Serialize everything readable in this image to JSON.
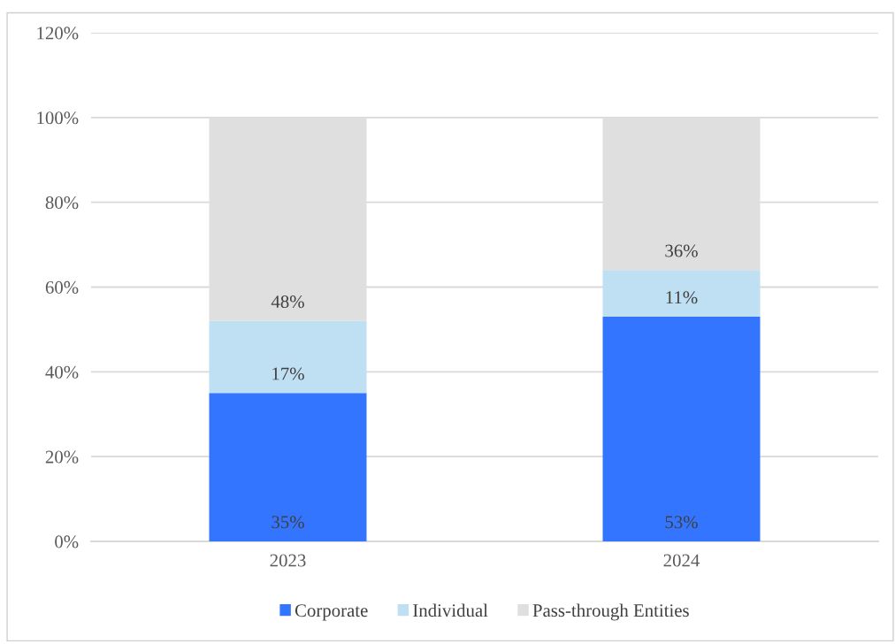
{
  "chart_data": {
    "type": "bar",
    "stacked": true,
    "categories": [
      "2023",
      "2024"
    ],
    "series": [
      {
        "name": "Corporate",
        "color": "#3375ff",
        "values": [
          35,
          53
        ],
        "value_labels": [
          "35%",
          "53%"
        ]
      },
      {
        "name": "Individual",
        "color": "#bfdff3",
        "values": [
          17,
          11
        ],
        "value_labels": [
          "17%",
          "11%"
        ]
      },
      {
        "name": "Pass-through Entities",
        "color": "#dfdfdf",
        "values": [
          48,
          36
        ],
        "value_labels": [
          "48%",
          "36%"
        ]
      }
    ],
    "ylim": [
      0,
      120
    ],
    "yticks": [
      {
        "value": 0,
        "label": "0%"
      },
      {
        "value": 20,
        "label": "20%"
      },
      {
        "value": 40,
        "label": "40%"
      },
      {
        "value": 60,
        "label": "60%"
      },
      {
        "value": 80,
        "label": "80%"
      },
      {
        "value": 100,
        "label": "100%"
      },
      {
        "value": 120,
        "label": "120%"
      }
    ],
    "grid": "y",
    "legend": "bottom"
  }
}
